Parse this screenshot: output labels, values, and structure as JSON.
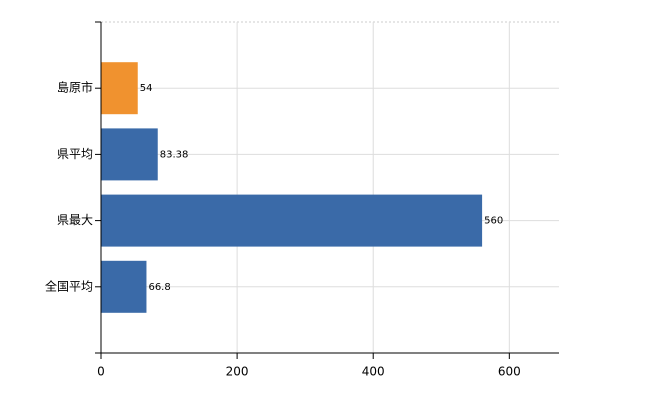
{
  "chart_data": {
    "type": "hbar",
    "categories": [
      "島原市",
      "県平均",
      "県最大",
      "全国平均"
    ],
    "values": [
      54,
      83.38,
      560,
      66.8
    ],
    "colors": [
      "#f0922f",
      "#3a6aa8",
      "#3a6aa8",
      "#3a6aa8"
    ],
    "xlim": [
      0,
      673
    ],
    "xticks": [
      0,
      200,
      400,
      600
    ],
    "grid": true
  }
}
